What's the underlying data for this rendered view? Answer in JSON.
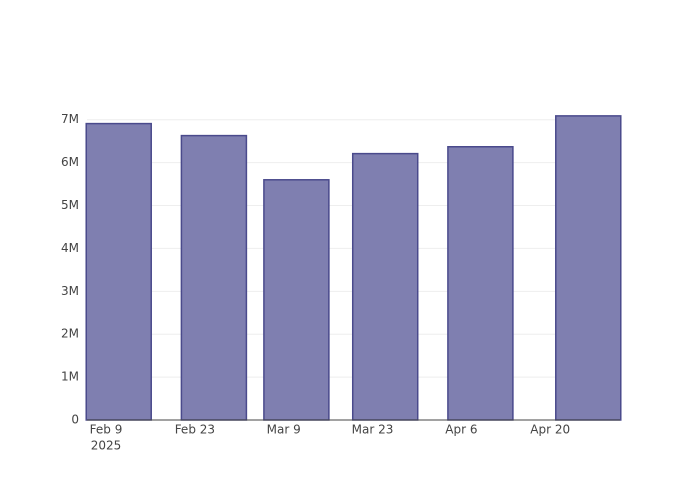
{
  "chart_data": {
    "type": "bar",
    "x": [
      "2025-02-11",
      "2025-02-26",
      "2025-03-11",
      "2025-03-25",
      "2025-04-09",
      "2025-04-26"
    ],
    "values": [
      6910000,
      6630000,
      5600000,
      6210000,
      6370000,
      7090000
    ],
    "color": "#7f7fb0",
    "edge_color": "#4a4a8c",
    "xlim": [
      "2025-02-06",
      "2025-05-01"
    ],
    "xticks": [
      {
        "value": "2025-02-09",
        "label": "Feb 9"
      },
      {
        "value": "2025-02-23",
        "label": "Feb 23"
      },
      {
        "value": "2025-03-09",
        "label": "Mar 9"
      },
      {
        "value": "2025-03-23",
        "label": "Mar 23"
      },
      {
        "value": "2025-04-06",
        "label": "Apr 6"
      },
      {
        "value": "2025-04-20",
        "label": "Apr 20"
      }
    ],
    "x_axis_year": "2025",
    "ylim": [
      0,
      7460000
    ],
    "yticks": [
      0,
      {
        "value": 1000000,
        "label": "1M"
      },
      {
        "value": 2000000,
        "label": "2M"
      },
      {
        "value": 3000000,
        "label": "3M"
      },
      {
        "value": 4000000,
        "label": "4M"
      },
      {
        "value": 5000000,
        "label": "5M"
      },
      {
        "value": 6000000,
        "label": "6M"
      },
      {
        "value": 7000000,
        "label": "7M"
      }
    ],
    "grid": true
  }
}
